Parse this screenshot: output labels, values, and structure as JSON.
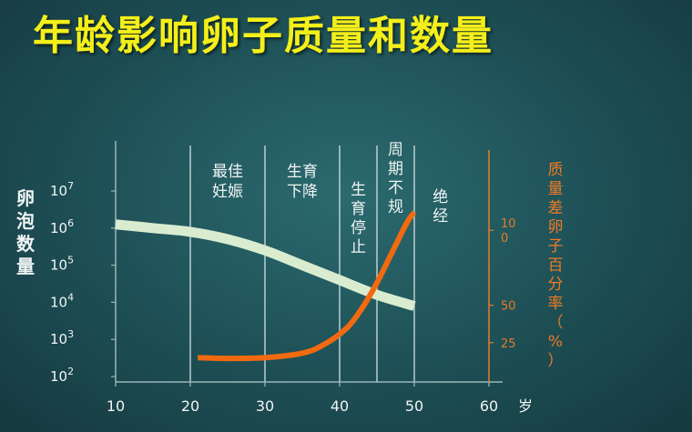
{
  "title": "年龄影响卵子质量和数量",
  "chart_data": {
    "type": "line",
    "xlabel": "岁",
    "ylabel_left": "卵泡数量",
    "ylabel_right": "质量差卵子百分率（%）",
    "x_ticks": [
      10,
      20,
      30,
      40,
      50,
      60
    ],
    "xlim": [
      10,
      60
    ],
    "left_axis": {
      "scale": "log",
      "ticks": [
        {
          "base": "10",
          "exp": "2"
        },
        {
          "base": "10",
          "exp": "3"
        },
        {
          "base": "10",
          "exp": "4"
        },
        {
          "base": "10",
          "exp": "5"
        },
        {
          "base": "10",
          "exp": "6"
        },
        {
          "base": "10",
          "exp": "7"
        }
      ],
      "ylim_exp": [
        2,
        7
      ]
    },
    "right_axis": {
      "ticks": [
        {
          "value": 25,
          "label": "25"
        },
        {
          "value": 50,
          "label": "50"
        },
        {
          "value": 100,
          "label": "10\n0"
        }
      ],
      "ylim": [
        0,
        125
      ]
    },
    "phase_lines": [
      20,
      30,
      40,
      45,
      50
    ],
    "phase_labels": [
      {
        "text": "最佳\n妊娠",
        "x": 25
      },
      {
        "text": "生育\n下降",
        "x": 35
      },
      {
        "text": "生\n育\n停\n止",
        "x": 42.5
      },
      {
        "text": "周\n期\n不\n规",
        "x": 47.5
      },
      {
        "text": "绝\n经",
        "x": 53.5
      }
    ],
    "series": [
      {
        "axis": "left",
        "color": "#d9ecd0",
        "points": [
          [
            10,
            6.1
          ],
          [
            15,
            6.0
          ],
          [
            20,
            5.9
          ],
          [
            25,
            5.7
          ],
          [
            30,
            5.4
          ],
          [
            35,
            5.0
          ],
          [
            40,
            4.6
          ],
          [
            45,
            4.2
          ],
          [
            50,
            3.9
          ]
        ]
      },
      {
        "axis": "right",
        "color": "#f26a10",
        "points": [
          [
            21,
            15
          ],
          [
            25,
            14.5
          ],
          [
            30,
            15
          ],
          [
            35,
            18
          ],
          [
            38,
            24
          ],
          [
            41,
            35
          ],
          [
            43,
            48
          ],
          [
            45,
            65
          ],
          [
            47,
            85
          ],
          [
            49,
            105
          ],
          [
            50,
            112
          ]
        ]
      }
    ]
  }
}
